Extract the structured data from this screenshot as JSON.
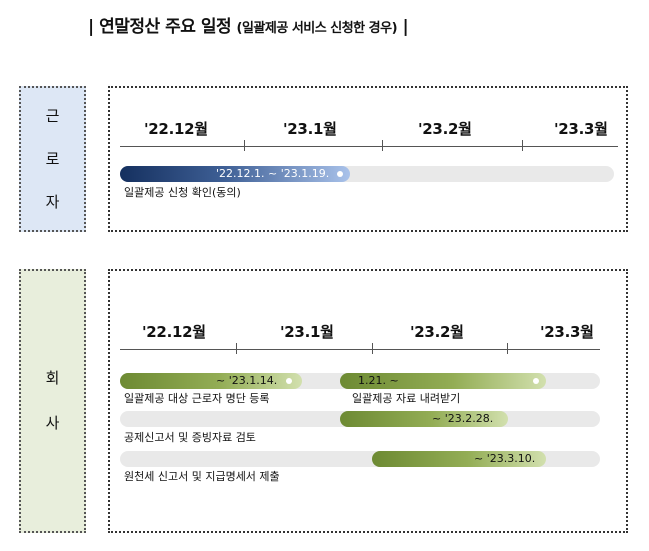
{
  "title": {
    "main": "연말정산 주요 일정",
    "sub": "(일괄제공 서비스 신청한 경우)",
    "left_bar": "|",
    "right_bar": "|"
  },
  "worker": {
    "label_chars": [
      "근",
      "로",
      "자"
    ],
    "months": [
      "'22.12월",
      "'23.1월",
      "'23.2월",
      "'23.3월"
    ],
    "period_text": "'22.12.1. ~ '23.1.19.",
    "task": "일괄제공 신청 확인(동의)"
  },
  "company": {
    "label_chars": [
      "회",
      "사"
    ],
    "months": [
      "'22.12월",
      "'23.1월",
      "'23.2월",
      "'23.3월"
    ],
    "bars": [
      {
        "text": "~ '23.1.14.",
        "task": "일괄제공 대상 근로자 명단 등록"
      },
      {
        "text": "1.21. ~",
        "task": "일괄제공 자료 내려받기"
      },
      {
        "text": "~ '23.2.28.",
        "task": "공제신고서 및 증빙자료 검토"
      },
      {
        "text": "~ '23.3.10.",
        "task": "원천세 신고서 및 지급명세서 제출"
      }
    ]
  },
  "colors": {
    "worker_bg": "#dde7f5",
    "company_bg": "#e8eedc",
    "bar_blue": "#15305f",
    "bar_green": "#6d8a33",
    "track": "#e9e9e9"
  }
}
